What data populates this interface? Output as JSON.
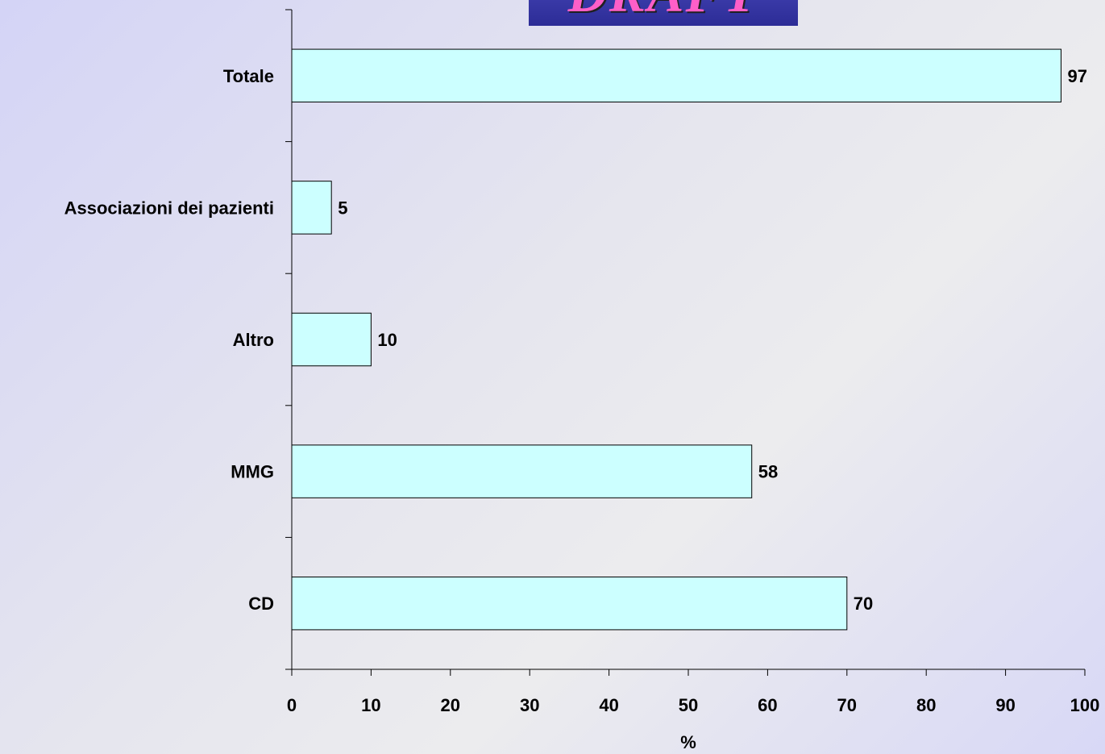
{
  "banner": {
    "text": "DRAFT"
  },
  "chart_data": {
    "type": "bar",
    "orientation": "horizontal",
    "categories": [
      "Totale",
      "Associazioni dei pazienti",
      "Altro",
      "MMG",
      "CD"
    ],
    "values": [
      97,
      5,
      10,
      58,
      70
    ],
    "xlabel": "%",
    "ylabel": "",
    "xlim": [
      0,
      100
    ],
    "xticks": [
      "0",
      "10",
      "20",
      "30",
      "40",
      "50",
      "60",
      "70",
      "80",
      "90",
      "100"
    ],
    "data_labels": [
      "97",
      "5",
      "10",
      "58",
      "70"
    ],
    "bar_color": "#ccffff",
    "bar_edge_color": "#000000",
    "grid": false,
    "legend": false
  }
}
